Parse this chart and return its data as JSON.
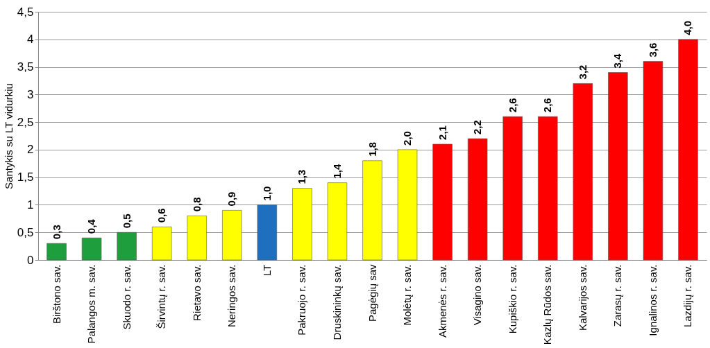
{
  "chart_data": {
    "type": "bar",
    "ylabel": "Santykis su  LT vidurkiu",
    "categories": [
      "Birštono sav.",
      "Palangos m. sav.",
      "Skuodo r. sav.",
      "Širvintų r. sav.",
      "Rietavo sav.",
      "Neringos sav.",
      "LT",
      "Pakruojo r. sav.",
      "Druskininkų sav.",
      "Pagėgių sav",
      "Molėtų r. sav.",
      "Akmenės r. sav.",
      "Visagino sav.",
      "Kupiškio r. sav.",
      "Kazlų Rūdos sav.",
      "Kalvarijos sav.",
      "Zarasų r. sav.",
      "Ignalinos r. sav.",
      "Lazdijų r. sav."
    ],
    "values": [
      0.3,
      0.4,
      0.5,
      0.6,
      0.8,
      0.9,
      1.0,
      1.3,
      1.4,
      1.8,
      2.0,
      2.1,
      2.2,
      2.6,
      2.6,
      3.2,
      3.4,
      3.6,
      4.0
    ],
    "value_labels": [
      "0,3",
      "0,4",
      "0,5",
      "0,6",
      "0,8",
      "0,9",
      "1,0",
      "1,3",
      "1,4",
      "1,8",
      "2,0",
      "2,1",
      "2,2",
      "2,6",
      "2,6",
      "3,2",
      "3,4",
      "3,6",
      "4,0"
    ],
    "colors": [
      "#1e9e3c",
      "#1e9e3c",
      "#1e9e3c",
      "#ffff00",
      "#ffff00",
      "#ffff00",
      "#1f6fbf",
      "#ffff00",
      "#ffff00",
      "#ffff00",
      "#ffff00",
      "#ff0000",
      "#ff0000",
      "#ff0000",
      "#ff0000",
      "#ff0000",
      "#ff0000",
      "#ff0000",
      "#ff0000"
    ],
    "ylim": [
      0,
      4.5
    ],
    "yticks": [
      0,
      {
        "value": 0.5,
        "label": "0,5"
      },
      1,
      {
        "value": 1.5,
        "label": "1,5"
      },
      2,
      {
        "value": 2.5,
        "label": "2,5"
      },
      3,
      {
        "value": 3.5,
        "label": "3,5"
      },
      4,
      {
        "value": 4.5,
        "label": "4,5"
      }
    ],
    "grid": "y"
  }
}
